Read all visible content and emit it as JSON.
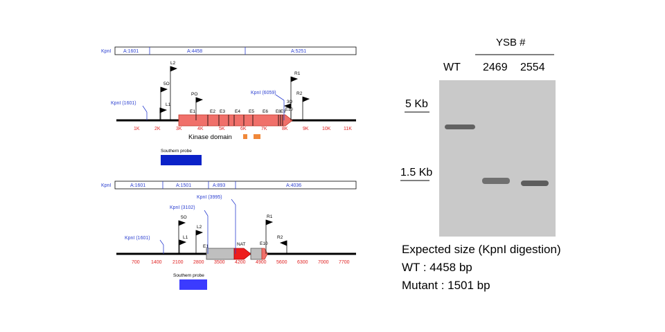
{
  "wt_map": {
    "enzyme": "KpnI",
    "fragments": [
      "A:1601",
      "A:4458",
      "A:5251"
    ],
    "kpn_left": "KpnI (1601)",
    "kpn_right": "KpnI (6059)",
    "primers": [
      "L2",
      "5O",
      "L1",
      "PO",
      "R1",
      "R2",
      "3O"
    ],
    "exons": [
      "E1",
      "E2",
      "E3",
      "E4",
      "E5",
      "E6",
      "E8",
      "E9",
      "E10"
    ],
    "ticks": [
      "1K",
      "2K",
      "3K",
      "4K",
      "5K",
      "6K",
      "7K",
      "8K",
      "9K",
      "10K",
      "11K"
    ],
    "kinase_label": "Kinase domain",
    "probe_label": "Southern probe"
  },
  "mut_map": {
    "enzyme": "KpnI",
    "fragments": [
      "A:1601",
      "A:1501",
      "A:893",
      "A:4036"
    ],
    "kpn_left": "KpnI (1601)",
    "kpn_mid1": "KpnI (3102)",
    "kpn_mid2": "KpnI (3995)",
    "primers": [
      "5O",
      "L2",
      "L1",
      "R1",
      "R2"
    ],
    "exons": [
      "E1",
      "E10"
    ],
    "marker": "NAT",
    "ticks": [
      "700",
      "1400",
      "2100",
      "2800",
      "3500",
      "4200",
      "4900",
      "5600",
      "6300",
      "7000",
      "7700"
    ],
    "probe_label": "Southern probe"
  },
  "blot": {
    "group_label": "YSB #",
    "lanes": [
      "WT",
      "2469",
      "2554"
    ],
    "markers": [
      "5 Kb",
      "1.5 Kb"
    ]
  },
  "caption": {
    "line1": "Expected size (KpnI digestion)",
    "line2": "WT : 4458 bp",
    "line3": "Mutant : 1501 bp"
  },
  "colors": {
    "exon": "#f0706a",
    "exon_stroke": "#c0392b",
    "probe1": "#0b22c8",
    "probe2": "#3b3bff",
    "nat": "#ee1c1c",
    "gray_box": "#bfbfbf",
    "tick_red": "#e02020",
    "kpn_blue": "#2b3fd0",
    "kinase": "#f0883a"
  }
}
